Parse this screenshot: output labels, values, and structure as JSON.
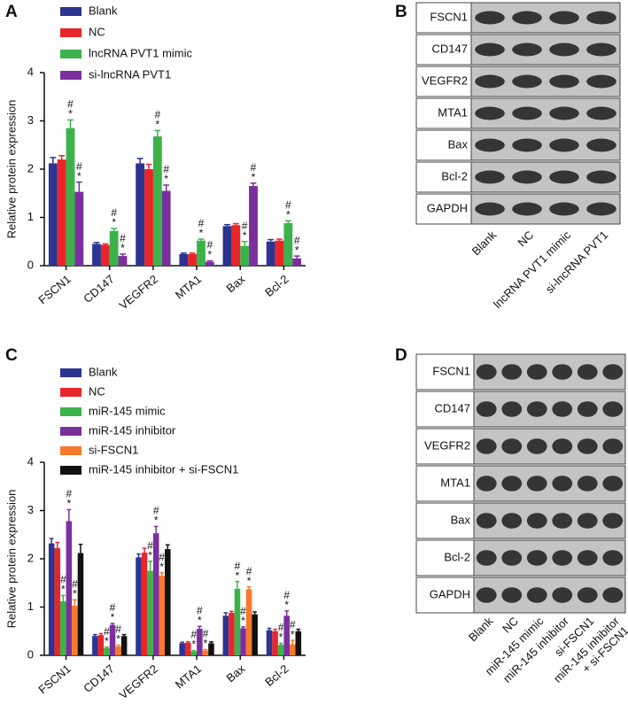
{
  "chart_data": [
    {
      "panel": "A",
      "type": "bar",
      "ylabel": "Relative protein expression",
      "categories": [
        "FSCN1",
        "CD147",
        "VEGFR2",
        "MTA1",
        "Bax",
        "Bcl-2"
      ],
      "ylim": [
        0,
        4
      ],
      "yticks": [
        0,
        1,
        2,
        3,
        4
      ],
      "series": [
        {
          "name": "Blank",
          "color": "#2b3490",
          "values": [
            2.12,
            0.45,
            2.12,
            0.24,
            0.82,
            0.5
          ],
          "errors": [
            0.12,
            0.03,
            0.1,
            0.02,
            0.03,
            0.04
          ],
          "markers": [
            null,
            null,
            null,
            null,
            null,
            null
          ]
        },
        {
          "name": "NC",
          "color": "#e8262a",
          "values": [
            2.2,
            0.43,
            2.0,
            0.24,
            0.84,
            0.52
          ],
          "errors": [
            0.08,
            0.02,
            0.1,
            0.02,
            0.03,
            0.03
          ],
          "markers": [
            null,
            null,
            null,
            null,
            null,
            null
          ]
        },
        {
          "name": "lncRNA PVT1 mimic",
          "color": "#3cb34a",
          "values": [
            2.85,
            0.72,
            2.68,
            0.52,
            0.41,
            0.88
          ],
          "errors": [
            0.17,
            0.05,
            0.12,
            0.03,
            0.09,
            0.05
          ],
          "markers": [
            [
              "#",
              "*"
            ],
            [
              "#",
              "*"
            ],
            [
              "#",
              "*"
            ],
            [
              "#",
              "*"
            ],
            [
              "#",
              "*"
            ],
            [
              "#",
              "*"
            ]
          ]
        },
        {
          "name": "si-lncRNA PVT1",
          "color": "#7b2f9e",
          "values": [
            1.53,
            0.2,
            1.55,
            0.08,
            1.65,
            0.15
          ],
          "errors": [
            0.2,
            0.04,
            0.12,
            0.02,
            0.06,
            0.05
          ],
          "markers": [
            [
              "#",
              "*"
            ],
            [
              "#",
              "*"
            ],
            [
              "#",
              "*"
            ],
            [
              "#",
              "*"
            ],
            [
              "#",
              "*"
            ],
            [
              "#",
              "*"
            ]
          ]
        }
      ]
    },
    {
      "panel": "C",
      "type": "bar",
      "ylabel": "Relative protein expression",
      "categories": [
        "FSCN1",
        "CD147",
        "VEGFR2",
        "MTA1",
        "Bax",
        "Bcl-2"
      ],
      "ylim": [
        0,
        4
      ],
      "yticks": [
        0,
        1,
        2,
        3,
        4
      ],
      "series": [
        {
          "name": "Blank",
          "color": "#2b3490",
          "values": [
            2.32,
            0.4,
            2.03,
            0.25,
            0.82,
            0.52
          ],
          "errors": [
            0.1,
            0.03,
            0.07,
            0.02,
            0.06,
            0.04
          ],
          "markers": [
            null,
            null,
            null,
            null,
            null,
            null
          ]
        },
        {
          "name": "NC",
          "color": "#e8262a",
          "values": [
            2.22,
            0.42,
            2.13,
            0.26,
            0.88,
            0.5
          ],
          "errors": [
            0.12,
            0.03,
            0.09,
            0.02,
            0.03,
            0.04
          ],
          "markers": [
            null,
            null,
            null,
            null,
            null,
            null
          ]
        },
        {
          "name": "miR-145 mimic",
          "color": "#3cb34a",
          "values": [
            1.12,
            0.15,
            1.75,
            0.08,
            1.38,
            0.22
          ],
          "errors": [
            0.12,
            0.02,
            0.2,
            0.02,
            0.15,
            0.03
          ],
          "markers": [
            [
              "#",
              "*"
            ],
            [
              "#",
              "*"
            ],
            [
              "#",
              "*"
            ],
            [
              "#",
              "*"
            ],
            [
              "#",
              "*"
            ],
            [
              "#",
              "*"
            ]
          ]
        },
        {
          "name": "miR-145 inhibitor",
          "color": "#7b2f9e",
          "values": [
            2.78,
            0.63,
            2.53,
            0.55,
            0.56,
            0.82
          ],
          "errors": [
            0.24,
            0.03,
            0.14,
            0.05,
            0.03,
            0.1
          ],
          "markers": [
            [
              "#",
              "*"
            ],
            [
              "#",
              "*"
            ],
            [
              "#",
              "*"
            ],
            [
              "#",
              "*"
            ],
            [
              "#",
              "*"
            ],
            [
              "#",
              "*"
            ]
          ]
        },
        {
          "name": "si-FSCN1",
          "color": "#f7792a",
          "values": [
            1.03,
            0.18,
            1.65,
            0.1,
            1.37,
            0.23
          ],
          "errors": [
            0.12,
            0.03,
            0.06,
            0.02,
            0.05,
            0.08
          ],
          "markers": [
            [
              "#",
              "*"
            ],
            [
              "#",
              "*"
            ],
            [
              "#",
              "*"
            ],
            [
              "#",
              "*"
            ],
            [
              "#",
              "*"
            ],
            [
              "#",
              "*"
            ]
          ]
        },
        {
          "name": "miR-145 inhibitor + si-FSCN1",
          "color": "#111111",
          "values": [
            2.12,
            0.4,
            2.2,
            0.25,
            0.85,
            0.5
          ],
          "errors": [
            0.18,
            0.03,
            0.09,
            0.03,
            0.05,
            0.04
          ],
          "markers": [
            null,
            null,
            null,
            null,
            null,
            null
          ]
        }
      ]
    }
  ],
  "blots": [
    {
      "panel": "B",
      "rows": [
        "FSCN1",
        "CD147",
        "VEGFR2",
        "MTA1",
        "Bax",
        "Bcl-2",
        "GAPDH"
      ],
      "lanes": [
        [
          "Blank"
        ],
        [
          "NC"
        ],
        [
          "lncRNA PVT1 mimic"
        ],
        [
          "si-lncRNA PVT1"
        ]
      ]
    },
    {
      "panel": "D",
      "rows": [
        "FSCN1",
        "CD147",
        "VEGFR2",
        "MTA1",
        "Bax",
        "Bcl-2",
        "GAPDH"
      ],
      "lanes": [
        [
          "Blank"
        ],
        [
          "NC"
        ],
        [
          "miR-145 mimic"
        ],
        [
          "miR-145 inhibitor"
        ],
        [
          "si-FSCN1"
        ],
        [
          "miR-145 inhibitor",
          "+ si-FSCN1"
        ]
      ]
    }
  ]
}
